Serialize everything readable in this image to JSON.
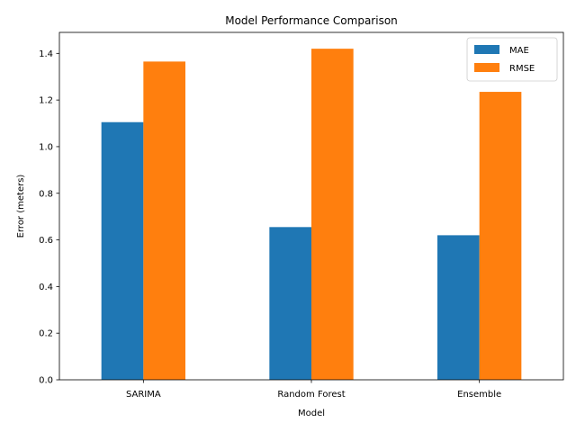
{
  "chart_data": {
    "type": "bar",
    "title": "Model Performance Comparison",
    "xlabel": "Model",
    "ylabel": "Error (meters)",
    "categories": [
      "SARIMA",
      "Random Forest",
      "Ensemble"
    ],
    "series": [
      {
        "name": "MAE",
        "color": "#1f77b4",
        "values": [
          1.105,
          0.655,
          0.62
        ]
      },
      {
        "name": "RMSE",
        "color": "#ff7f0e",
        "values": [
          1.365,
          1.42,
          1.235
        ]
      }
    ],
    "ylim": [
      0,
      1.49
    ],
    "yticks": [
      "0.0",
      "0.2",
      "0.4",
      "0.6",
      "0.8",
      "1.0",
      "1.2",
      "1.4"
    ],
    "grid": false,
    "legend_position": "top-right"
  }
}
